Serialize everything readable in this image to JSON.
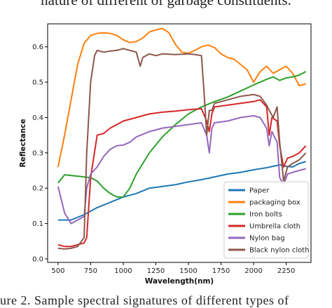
{
  "captions": {
    "top": "nature of different of garbage constituents.",
    "bottom": "ure 2. Sample spectral signatures of different types of"
  },
  "chart_data": {
    "type": "line",
    "title": "",
    "xlabel": "Wavelength(nm)",
    "ylabel": "Reflectance",
    "xlim": [
      420,
      2440
    ],
    "ylim": [
      -0.01,
      0.665
    ],
    "xticks": [
      500,
      750,
      1000,
      1250,
      1500,
      1750,
      2000,
      2250
    ],
    "yticks": [
      0.0,
      0.1,
      0.2,
      0.3,
      0.4,
      0.5,
      0.6
    ],
    "ytick_labels": [
      "0.0",
      "0.1",
      "0.2",
      "0.3",
      "0.4",
      "0.5",
      "0.6"
    ],
    "grid": false,
    "legend_position": "lower-right",
    "series": [
      {
        "name": "Paper",
        "color": "#1f77b4",
        "x": [
          500,
          600,
          700,
          800,
          900,
          1000,
          1100,
          1200,
          1300,
          1400,
          1500,
          1600,
          1700,
          1800,
          1900,
          2000,
          2100,
          2200,
          2250,
          2300,
          2350,
          2400
        ],
        "y": [
          0.11,
          0.11,
          0.125,
          0.145,
          0.16,
          0.175,
          0.185,
          0.2,
          0.205,
          0.21,
          0.218,
          0.224,
          0.232,
          0.24,
          0.245,
          0.252,
          0.258,
          0.266,
          0.262,
          0.26,
          0.27,
          0.275
        ]
      },
      {
        "name": "packaging box",
        "color": "#ff7f0e",
        "x": [
          500,
          550,
          600,
          650,
          700,
          750,
          800,
          850,
          900,
          950,
          1000,
          1050,
          1100,
          1150,
          1200,
          1250,
          1300,
          1350,
          1400,
          1450,
          1500,
          1550,
          1600,
          1650,
          1700,
          1750,
          1800,
          1850,
          1900,
          1950,
          2000,
          2050,
          2100,
          2150,
          2200,
          2250,
          2300,
          2350,
          2400
        ],
        "y": [
          0.26,
          0.35,
          0.45,
          0.55,
          0.61,
          0.632,
          0.638,
          0.64,
          0.638,
          0.632,
          0.62,
          0.612,
          0.615,
          0.625,
          0.642,
          0.648,
          0.652,
          0.64,
          0.607,
          0.585,
          0.582,
          0.59,
          0.6,
          0.605,
          0.598,
          0.58,
          0.57,
          0.565,
          0.55,
          0.535,
          0.5,
          0.53,
          0.545,
          0.525,
          0.535,
          0.545,
          0.525,
          0.49,
          0.495
        ]
      },
      {
        "name": "Iron bolts",
        "color": "#2ca02c",
        "x": [
          500,
          550,
          600,
          700,
          750,
          800,
          850,
          900,
          950,
          1000,
          1050,
          1100,
          1200,
          1300,
          1400,
          1500,
          1600,
          1700,
          1800,
          1900,
          2000,
          2100,
          2150,
          2200,
          2250,
          2300,
          2350,
          2400
        ],
        "y": [
          0.215,
          0.238,
          0.236,
          0.232,
          0.23,
          0.22,
          0.2,
          0.185,
          0.175,
          0.175,
          0.2,
          0.24,
          0.3,
          0.345,
          0.38,
          0.41,
          0.43,
          0.445,
          0.458,
          0.475,
          0.492,
          0.508,
          0.515,
          0.505,
          0.512,
          0.515,
          0.52,
          0.53
        ]
      },
      {
        "name": "Umbrella cloth",
        "color": "#d62728",
        "x": [
          500,
          550,
          600,
          650,
          700,
          720,
          750,
          800,
          850,
          900,
          950,
          1000,
          1100,
          1200,
          1300,
          1400,
          1500,
          1600,
          1640,
          1660,
          1680,
          1700,
          1800,
          1900,
          2000,
          2050,
          2100,
          2120,
          2140,
          2180,
          2200,
          2230,
          2260,
          2300,
          2350,
          2400
        ],
        "y": [
          0.04,
          0.035,
          0.035,
          0.04,
          0.045,
          0.06,
          0.23,
          0.35,
          0.355,
          0.37,
          0.38,
          0.39,
          0.4,
          0.41,
          0.415,
          0.418,
          0.422,
          0.425,
          0.39,
          0.36,
          0.41,
          0.43,
          0.435,
          0.44,
          0.445,
          0.45,
          0.43,
          0.35,
          0.4,
          0.39,
          0.32,
          0.26,
          0.285,
          0.29,
          0.3,
          0.32
        ]
      },
      {
        "name": "Nylon bag",
        "color": "#9467bd",
        "x": [
          500,
          550,
          600,
          650,
          700,
          720,
          750,
          800,
          850,
          900,
          950,
          1000,
          1050,
          1100,
          1200,
          1300,
          1400,
          1500,
          1600,
          1640,
          1660,
          1680,
          1700,
          1800,
          1900,
          2000,
          2050,
          2100,
          2120,
          2140,
          2180,
          2200,
          2230,
          2260,
          2300,
          2350,
          2400
        ],
        "y": [
          0.205,
          0.13,
          0.1,
          0.11,
          0.12,
          0.2,
          0.24,
          0.26,
          0.29,
          0.31,
          0.32,
          0.322,
          0.33,
          0.345,
          0.36,
          0.37,
          0.375,
          0.38,
          0.385,
          0.35,
          0.3,
          0.37,
          0.385,
          0.39,
          0.4,
          0.405,
          0.4,
          0.37,
          0.32,
          0.36,
          0.33,
          0.23,
          0.21,
          0.24,
          0.245,
          0.25,
          0.255
        ]
      },
      {
        "name": "Black nylon cloth",
        "color": "#8c564b",
        "x": [
          500,
          550,
          600,
          650,
          700,
          720,
          750,
          780,
          800,
          850,
          900,
          950,
          1000,
          1050,
          1100,
          1130,
          1150,
          1200,
          1250,
          1300,
          1400,
          1500,
          1550,
          1600,
          1620,
          1640,
          1660,
          1680,
          1700,
          1800,
          1900,
          2000,
          2050,
          2100,
          2120,
          2150,
          2180,
          2200,
          2230,
          2260,
          2300,
          2350,
          2400
        ],
        "y": [
          0.03,
          0.028,
          0.03,
          0.035,
          0.06,
          0.3,
          0.5,
          0.575,
          0.59,
          0.585,
          0.588,
          0.59,
          0.595,
          0.59,
          0.585,
          0.545,
          0.57,
          0.58,
          0.575,
          0.58,
          0.578,
          0.58,
          0.578,
          0.575,
          0.47,
          0.35,
          0.42,
          0.42,
          0.44,
          0.45,
          0.46,
          0.465,
          0.46,
          0.435,
          0.42,
          0.4,
          0.43,
          0.33,
          0.22,
          0.26,
          0.27,
          0.28,
          0.3
        ]
      }
    ]
  }
}
